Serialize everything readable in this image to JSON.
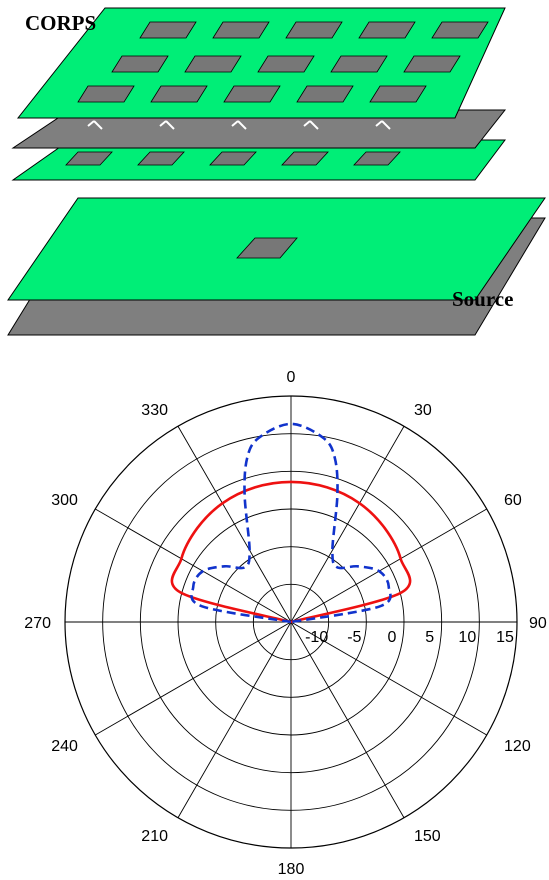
{
  "diagram": {
    "top_label": "CORPS",
    "bottom_label": "Source",
    "colors": {
      "plate_green": "#00ee77",
      "plate_gray": "#7f7f7f",
      "patch_gray": "#777777",
      "outline": "#000000"
    }
  },
  "chart_data": {
    "type": "polar",
    "angle_labels": [
      "0",
      "30",
      "60",
      "90",
      "120",
      "150",
      "180",
      "210",
      "240",
      "270",
      "300",
      "330"
    ],
    "radial_tick_labels": [
      "-10",
      "-5",
      "0",
      "5",
      "10",
      "15"
    ],
    "radial_range": [
      -15,
      15
    ],
    "angular_direction": "clockwise",
    "zero_location": "top",
    "series": [
      {
        "style": "solid",
        "color": "#ee1111",
        "theta_deg": [
          -90,
          -75,
          -60,
          -45,
          -30,
          -15,
          0,
          15,
          30,
          45,
          60,
          75,
          90
        ],
        "r_db": [
          -15,
          0.2,
          1.8,
          2.6,
          3.2,
          3.5,
          3.6,
          3.5,
          3.2,
          2.6,
          1.8,
          0.2,
          -15
        ]
      },
      {
        "style": "dashed",
        "color": "#1133cc",
        "theta_deg": [
          -90,
          -80,
          -70,
          -60,
          -50,
          -40,
          -30,
          -20,
          -15,
          -10,
          0,
          10,
          15,
          20,
          30,
          40,
          50,
          60,
          70,
          80,
          90
        ],
        "r_db": [
          -15,
          -3,
          -1.2,
          -1.5,
          -3.5,
          -5.5,
          -4,
          3,
          7.5,
          9.8,
          11.3,
          9.8,
          7.5,
          3,
          -4,
          -5.5,
          -3.5,
          -1.5,
          -1.2,
          -3,
          -15
        ]
      }
    ]
  }
}
